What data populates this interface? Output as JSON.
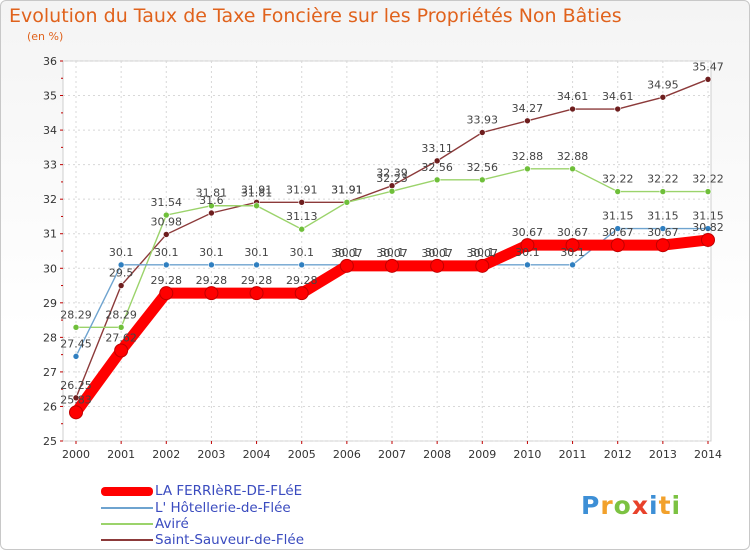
{
  "header": {
    "title": "Evolution du Taux de Taxe Foncière sur les Propriétés Non Bâties",
    "unit": "(en %)"
  },
  "logo": {
    "letters": [
      "P",
      "r",
      "o",
      "x",
      "i",
      "t",
      "i"
    ],
    "colors": [
      "#3d8fd6",
      "#f2a12b",
      "#7cc242",
      "#e8412a",
      "#3d8fd6",
      "#f2a12b",
      "#7cc242"
    ]
  },
  "chart_data": {
    "type": "line",
    "title": "Evolution du Taux de Taxe Foncière sur les Propriétés Non Bâties",
    "ylabel": "(en %)",
    "xlabel": "",
    "ylim": [
      25,
      36
    ],
    "yticks": [
      25,
      26,
      27,
      28,
      29,
      30,
      31,
      32,
      33,
      34,
      35,
      36
    ],
    "grid": true,
    "legend_position": "bottom-left",
    "x": [
      "2000",
      "2001",
      "2002",
      "2003",
      "2004",
      "2005",
      "2006",
      "2007",
      "2008",
      "2009",
      "2010",
      "2011",
      "2012",
      "2013",
      "2014"
    ],
    "series": [
      {
        "name": "LA FERRIèRE-DE-FLéE",
        "color": "#ff0000",
        "emphasis": true,
        "values": [
          25.83,
          27.62,
          29.28,
          29.28,
          29.28,
          29.28,
          30.07,
          30.07,
          30.07,
          30.07,
          30.67,
          30.67,
          30.67,
          30.67,
          30.82
        ],
        "labels": [
          "25.83",
          "27.62",
          "29.28",
          "29.28",
          "29.28",
          "29.28",
          "30.07",
          "30.07",
          "30.07",
          "30.07",
          "30.67",
          "30.67",
          "30.67",
          "30.67",
          "30.82"
        ]
      },
      {
        "name": "L' Hôtellerie-de-Flée",
        "color": "#6ea3cf",
        "marker": "#2f7fc0",
        "values": [
          27.45,
          30.1,
          30.1,
          30.1,
          30.1,
          30.1,
          30.1,
          30.1,
          30.1,
          30.1,
          30.1,
          30.1,
          31.15,
          31.15,
          31.15
        ],
        "labels": [
          "27.45",
          "30.1",
          "30.1",
          "30.1",
          "30.1",
          "30.1",
          "30.1",
          "30.1",
          "30.1",
          "30.1",
          "30.1",
          "30.1",
          "31.15",
          "31.15",
          "31.15"
        ]
      },
      {
        "name": "Aviré",
        "color": "#9bd36b",
        "marker": "#6fbf3a",
        "values": [
          28.29,
          28.29,
          31.54,
          31.81,
          31.81,
          31.13,
          31.91,
          32.23,
          32.56,
          32.56,
          32.88,
          32.88,
          32.22,
          32.22,
          32.22
        ],
        "labels": [
          "28.29",
          "28.29",
          "31.54",
          "31.81",
          "31.81",
          "31.13",
          "31.91",
          "32.23",
          "32.56",
          "32.56",
          "32.88",
          "32.88",
          "32.22",
          "32.22",
          "32.22"
        ]
      },
      {
        "name": "Saint-Sauveur-de-Flée",
        "color": "#8c3a3a",
        "marker": "#6e1e1e",
        "values": [
          26.25,
          29.5,
          30.98,
          31.6,
          31.91,
          31.91,
          31.91,
          32.39,
          33.11,
          33.93,
          34.27,
          34.61,
          34.61,
          34.95,
          35.47
        ],
        "labels": [
          "26.25",
          "29.5",
          "30.98",
          "31.6",
          "31.91",
          "31.91",
          "31.91",
          "32.39",
          "33.11",
          "33.93",
          "34.27",
          "34.61",
          "34.61",
          "34.95",
          "35.47"
        ]
      }
    ]
  }
}
